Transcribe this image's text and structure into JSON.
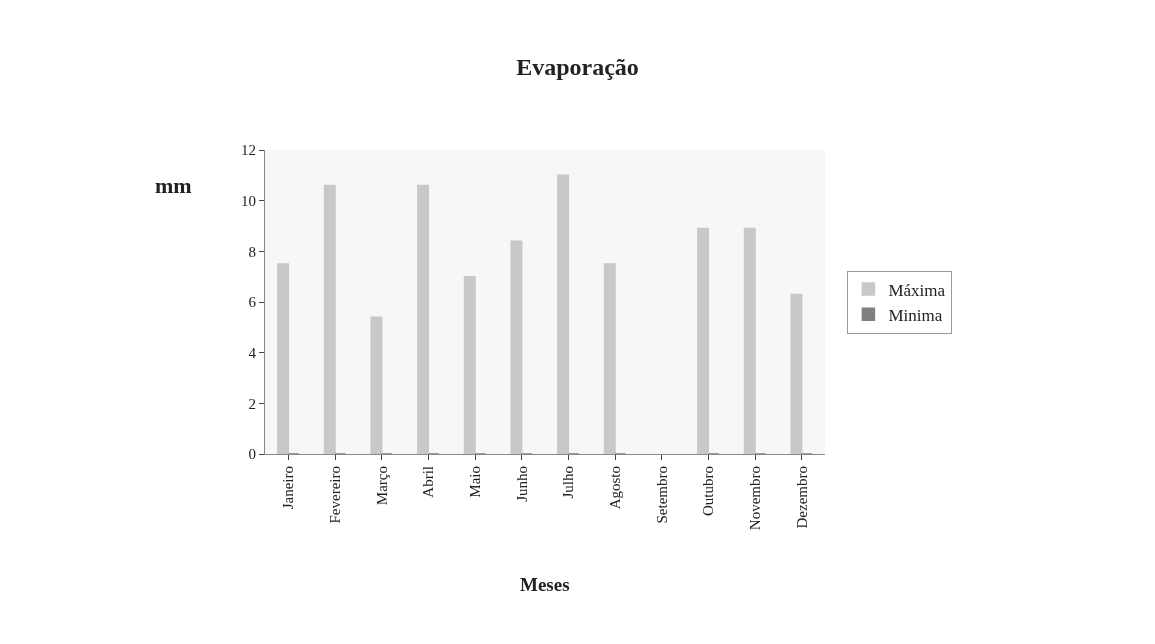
{
  "chart_data": {
    "type": "bar",
    "title": "Evaporação",
    "xlabel": "Meses",
    "ylabel": "mm",
    "categories": [
      "Janeiro",
      "Fevereiro",
      "Março",
      "Abril",
      "Maio",
      "Junho",
      "Julho",
      "Agosto",
      "Setembro",
      "Outubro",
      "Novembro",
      "Dezembro"
    ],
    "series": [
      {
        "name": "Máxima",
        "color": "#c8c8c8",
        "values": [
          7.5,
          10.6,
          5.4,
          10.6,
          7.0,
          8.4,
          11.0,
          7.5,
          null,
          8.9,
          8.9,
          6.3
        ]
      },
      {
        "name": "Minima",
        "color": "#808080",
        "values": [
          0,
          0,
          0,
          0,
          0,
          0,
          0,
          0,
          null,
          0,
          0,
          0
        ]
      }
    ],
    "ylim": [
      0,
      12
    ],
    "yticks": [
      0,
      2,
      4,
      6,
      8,
      10,
      12
    ],
    "legend": "right"
  }
}
